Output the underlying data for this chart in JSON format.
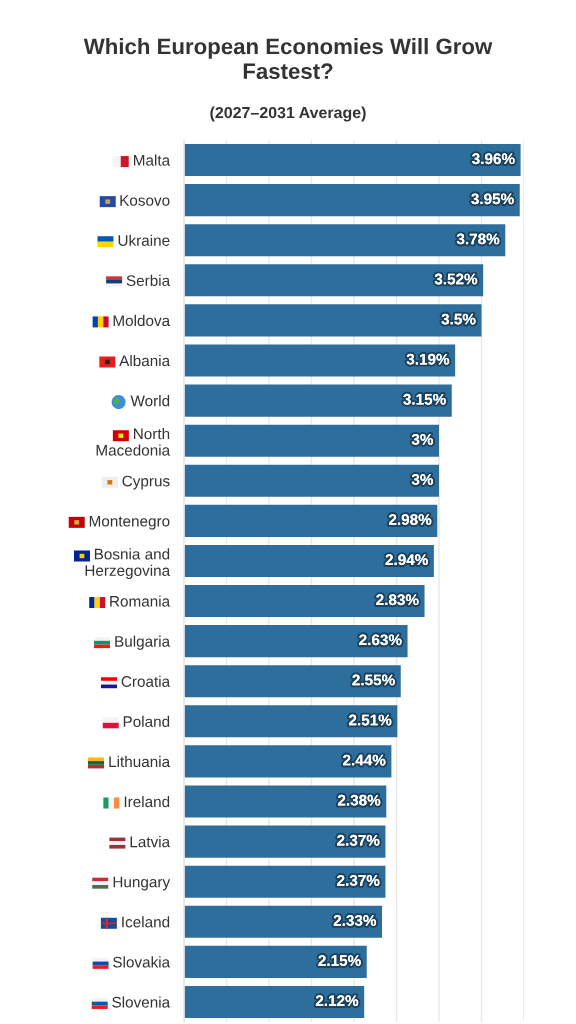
{
  "chart_data": {
    "type": "bar",
    "orientation": "horizontal",
    "title": "Which European Economies Will Grow Fastest?",
    "subtitle": "(2027–2031 Average)",
    "categories": [
      "Malta",
      "Kosovo",
      "Ukraine",
      "Serbia",
      "Moldova",
      "Albania",
      "World",
      "North Macedonia",
      "Cyprus",
      "Montenegro",
      "Bosnia and Herzegovina",
      "Romania",
      "Bulgaria",
      "Croatia",
      "Poland",
      "Lithuania",
      "Ireland",
      "Latvia",
      "Hungary",
      "Iceland",
      "Slovakia",
      "Slovenia"
    ],
    "values": [
      3.96,
      3.95,
      3.78,
      3.52,
      3.5,
      3.19,
      3.15,
      3,
      3,
      2.98,
      2.94,
      2.83,
      2.63,
      2.55,
      2.51,
      2.44,
      2.38,
      2.37,
      2.37,
      2.33,
      2.15,
      2.12
    ],
    "value_labels": [
      "3.96%",
      "3.95%",
      "3.78%",
      "3.52%",
      "3.5%",
      "3.19%",
      "3.15%",
      "3%",
      "3%",
      "2.98%",
      "2.94%",
      "2.83%",
      "2.63%",
      "2.55%",
      "2.51%",
      "2.44%",
      "2.38%",
      "2.37%",
      "2.37%",
      "2.33%",
      "2.15%",
      "2.12%"
    ],
    "color": "#2e6e9c",
    "xlim": [
      0,
      4
    ],
    "xticks": [
      {
        "value": 0,
        "label": null
      },
      {
        "value": 0.5,
        "label": null
      },
      {
        "value": 1,
        "label": null
      },
      {
        "value": 1.5,
        "label": null
      },
      {
        "value": 2,
        "label": null
      },
      {
        "value": 2.5,
        "label": null
      },
      {
        "value": 3,
        "label": null
      },
      {
        "value": 3.5,
        "label": null
      },
      {
        "value": 4,
        "label": null
      }
    ],
    "grid": "x",
    "tick_labels": "y"
  }
}
